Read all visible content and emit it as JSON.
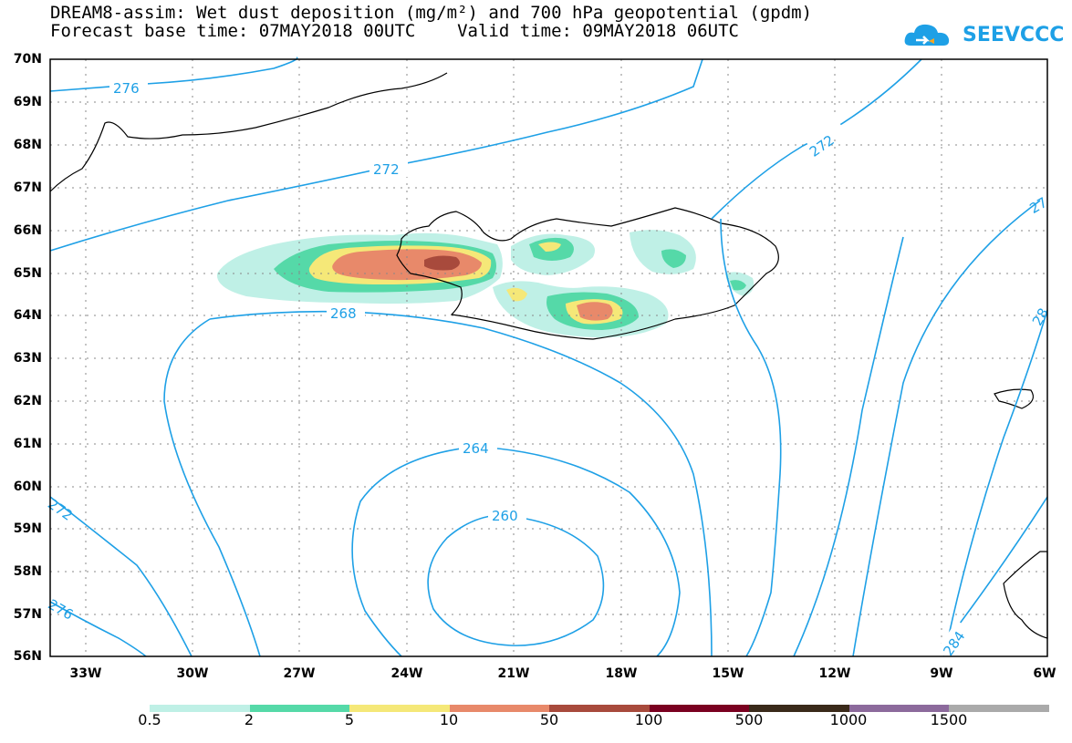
{
  "header": {
    "title_line1": "DREAM8-assim: Wet dust deposition (mg/m²) and 700 hPa geopotential (gpdm)",
    "title_line2": "Forecast base time: 07MAY2018 00UTC    Valid time: 09MAY2018 06UTC",
    "logo_text": "SEEVCCC"
  },
  "axes": {
    "latitudes": [
      "70N",
      "69N",
      "68N",
      "67N",
      "66N",
      "65N",
      "64N",
      "63N",
      "62N",
      "61N",
      "60N",
      "59N",
      "58N",
      "57N",
      "56N"
    ],
    "longitudes": [
      "33W",
      "30W",
      "27W",
      "24W",
      "21W",
      "18W",
      "15W",
      "12W",
      "9W",
      "6W"
    ]
  },
  "contour_labels": [
    "276",
    "272",
    "272",
    "268",
    "264",
    "260",
    "272",
    "276",
    "284",
    "27",
    "28"
  ],
  "colorbar": {
    "labels": [
      "0.5",
      "2",
      "5",
      "10",
      "50",
      "100",
      "500",
      "1000",
      "1500"
    ],
    "colors": [
      "#bff0e6",
      "#55d9a8",
      "#f5e878",
      "#e8896a",
      "#a84a3c",
      "#7a0020",
      "#3a2a1a",
      "#8c6a9c",
      "#aaaaaa"
    ]
  },
  "colors": {
    "contour": "#1ea0e6",
    "coast": "#000000",
    "grid": "#888888"
  }
}
